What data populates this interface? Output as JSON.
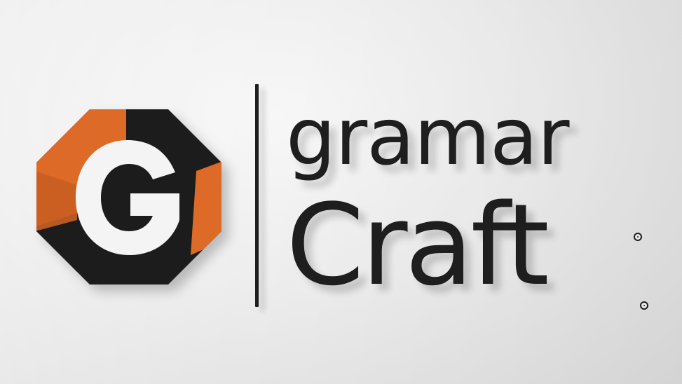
{
  "logo": {
    "emblem_letter": "G",
    "wordmark_line1": "gramar",
    "wordmark_line2": "Craft",
    "colors": {
      "orange": "#dd6a26",
      "black": "#1e1e1e",
      "white": "#f4f4f4",
      "wall": "#ececec"
    }
  }
}
